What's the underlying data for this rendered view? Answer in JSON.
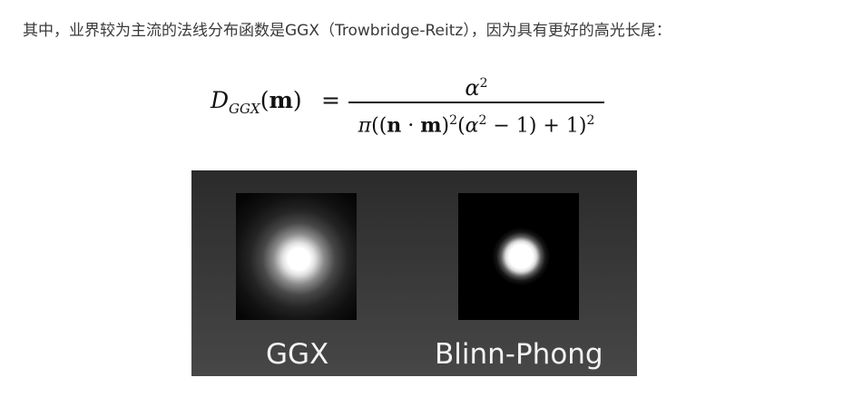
{
  "paragraph": {
    "text": "其中，业界较为主流的法线分布函数是GGX（Trowbridge-Reitz），因为具有更好的高光长尾："
  },
  "formula": {
    "lhs_symbol": "D",
    "lhs_subscript": "GGX",
    "lhs_argument_open": "(",
    "lhs_argument": "m",
    "lhs_argument_close": ")",
    "equals": "=",
    "numerator_base": "α",
    "numerator_exponent": "2",
    "den_pi": "π",
    "den_part1": "((",
    "den_n": "n",
    "den_dot": " · ",
    "den_m": "m",
    "den_part2": ")",
    "den_exp1": "2",
    "den_part3": "(",
    "den_alpha": "α",
    "den_exp2": "2",
    "den_part4": " − 1) + 1)",
    "den_exp3": "2"
  },
  "figure": {
    "left_label": "GGX",
    "right_label": "Blinn-Phong"
  }
}
